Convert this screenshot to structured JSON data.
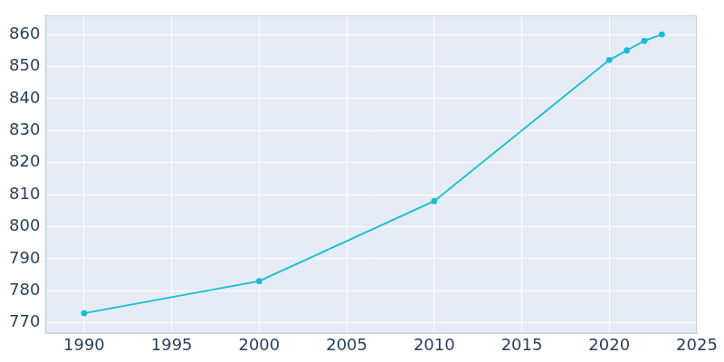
{
  "chart_data": {
    "type": "line",
    "x": [
      1990,
      2000,
      2010,
      2020,
      2021,
      2022,
      2023
    ],
    "values": [
      773,
      783,
      808,
      852,
      855,
      858,
      860
    ],
    "color": "#17becf",
    "marker": "circle",
    "xlim": [
      1987.8,
      2025
    ],
    "xticks": [
      1990,
      1995,
      2000,
      2005,
      2010,
      2015,
      2020,
      2025
    ],
    "ylim": [
      766.7,
      866
    ],
    "yticks": [
      770,
      780,
      790,
      800,
      810,
      820,
      830,
      840,
      850,
      860
    ],
    "grid": true
  }
}
